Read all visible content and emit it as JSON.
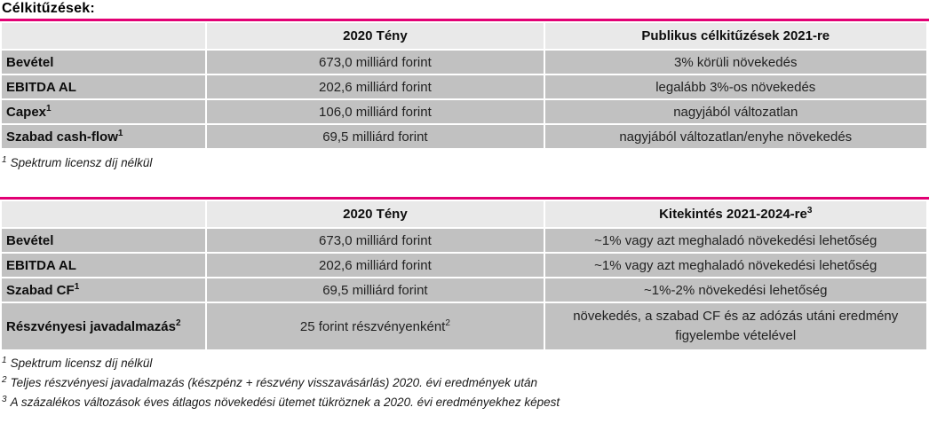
{
  "accent_color": "#E20074",
  "page": {
    "title": "Célkitűzések:"
  },
  "table1": {
    "headers": {
      "col1": "",
      "col2": "2020 Tény",
      "col2_sup": "",
      "col3": "Publikus célkitűzések 2021-re",
      "col3_sup": ""
    },
    "rows": [
      {
        "label": "Bevétel",
        "label_sup": "",
        "fact": "673,0 milliárd forint",
        "fact_sup": "",
        "target": "3% körüli növekedés"
      },
      {
        "label": "EBITDA AL",
        "label_sup": "",
        "fact": "202,6 milliárd forint",
        "fact_sup": "",
        "target": "legalább 3%-os növekedés"
      },
      {
        "label": "Capex",
        "label_sup": "1",
        "fact": "106,0 milliárd forint",
        "fact_sup": "",
        "target": "nagyjából változatlan"
      },
      {
        "label": "Szabad cash-flow",
        "label_sup": "1",
        "fact": "69,5 milliárd forint",
        "fact_sup": "",
        "target": "nagyjából változatlan/enyhe növekedés"
      }
    ],
    "footnotes": [
      {
        "sup": "1",
        "text": "Spektrum licensz díj nélkül"
      }
    ]
  },
  "table2": {
    "headers": {
      "col1": "",
      "col2": "2020 Tény",
      "col2_sup": "",
      "col3": "Kitekintés 2021-2024-re",
      "col3_sup": "3"
    },
    "rows": [
      {
        "label": "Bevétel",
        "label_sup": "",
        "fact": "673,0 milliárd forint",
        "fact_sup": "",
        "target": "~1% vagy azt meghaladó növekedési lehetőség"
      },
      {
        "label": "EBITDA AL",
        "label_sup": "",
        "fact": "202,6 milliárd forint",
        "fact_sup": "",
        "target": "~1% vagy azt meghaladó növekedési lehetőség"
      },
      {
        "label": "Szabad CF",
        "label_sup": "1",
        "fact": "69,5 milliárd forint",
        "fact_sup": "",
        "target": "~1%-2% növekedési lehetőség"
      },
      {
        "label": "Részvényesi javadalmazás",
        "label_sup": "2",
        "fact": "25 forint részvényenként",
        "fact_sup": "2",
        "target": "növekedés, a szabad CF és az adózás utáni eredmény figyelembe vételével"
      }
    ],
    "footnotes": [
      {
        "sup": "1",
        "text": "Spektrum licensz díj nélkül"
      },
      {
        "sup": "2",
        "text": "Teljes részvényesi javadalmazás (készpénz + részvény visszavásárlás) 2020. évi eredmények után"
      },
      {
        "sup": "3",
        "text": "A százalékos változások éves átlagos növekedési ütemet tükröznek a 2020. évi eredményekhez képest"
      }
    ]
  }
}
